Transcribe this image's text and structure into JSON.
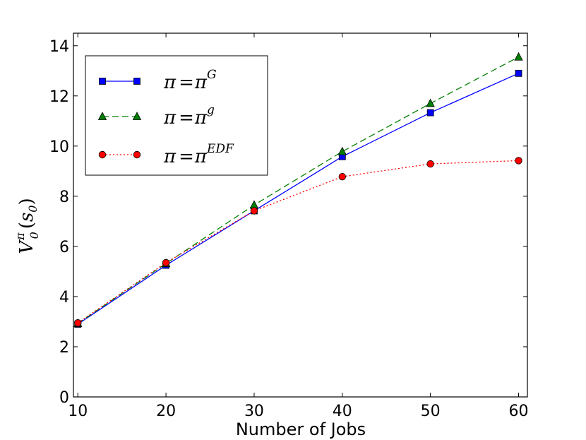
{
  "chart_data": {
    "type": "line",
    "title": "",
    "xlabel": "Number of Jobs",
    "ylabel": {
      "main": "V",
      "superscript": "π",
      "subscript": "0",
      "argument_open": "(",
      "argument": "s",
      "argument_subscript": "0",
      "argument_close": ")"
    },
    "x": [
      10,
      20,
      30,
      40,
      50,
      60
    ],
    "xlim": [
      9.5,
      61
    ],
    "ylim": [
      0,
      14.5
    ],
    "xticks": [
      "10",
      "20",
      "30",
      "40",
      "50",
      "60"
    ],
    "yticks": [
      "0",
      "2",
      "4",
      "6",
      "8",
      "10",
      "12",
      "14"
    ],
    "xtick_values": [
      10,
      20,
      30,
      40,
      50,
      60
    ],
    "ytick_values": [
      0,
      2,
      4,
      6,
      8,
      10,
      12,
      14
    ],
    "grid": false,
    "legend_position": "top-left",
    "series": [
      {
        "name": "π = π^G",
        "legend": {
          "lhs": "π",
          "eq": "=",
          "rhs": "π",
          "sup": "G"
        },
        "values": [
          2.9,
          5.25,
          7.42,
          9.58,
          11.33,
          12.9
        ],
        "color": "#0000ff",
        "marker": "square",
        "linestyle": "solid"
      },
      {
        "name": "π = π^g",
        "legend": {
          "lhs": "π",
          "eq": "=",
          "rhs": "π",
          "sup": "g"
        },
        "values": [
          2.93,
          5.32,
          7.65,
          9.78,
          11.7,
          13.55
        ],
        "color": "#008000",
        "marker": "triangle",
        "linestyle": "dashed"
      },
      {
        "name": "π = π^EDF",
        "legend": {
          "lhs": "π",
          "eq": "=",
          "rhs": "π",
          "sup": "EDF"
        },
        "values": [
          2.95,
          5.35,
          7.42,
          8.78,
          9.29,
          9.42
        ],
        "color": "#ff0000",
        "marker": "circle",
        "linestyle": "dotted"
      }
    ]
  }
}
